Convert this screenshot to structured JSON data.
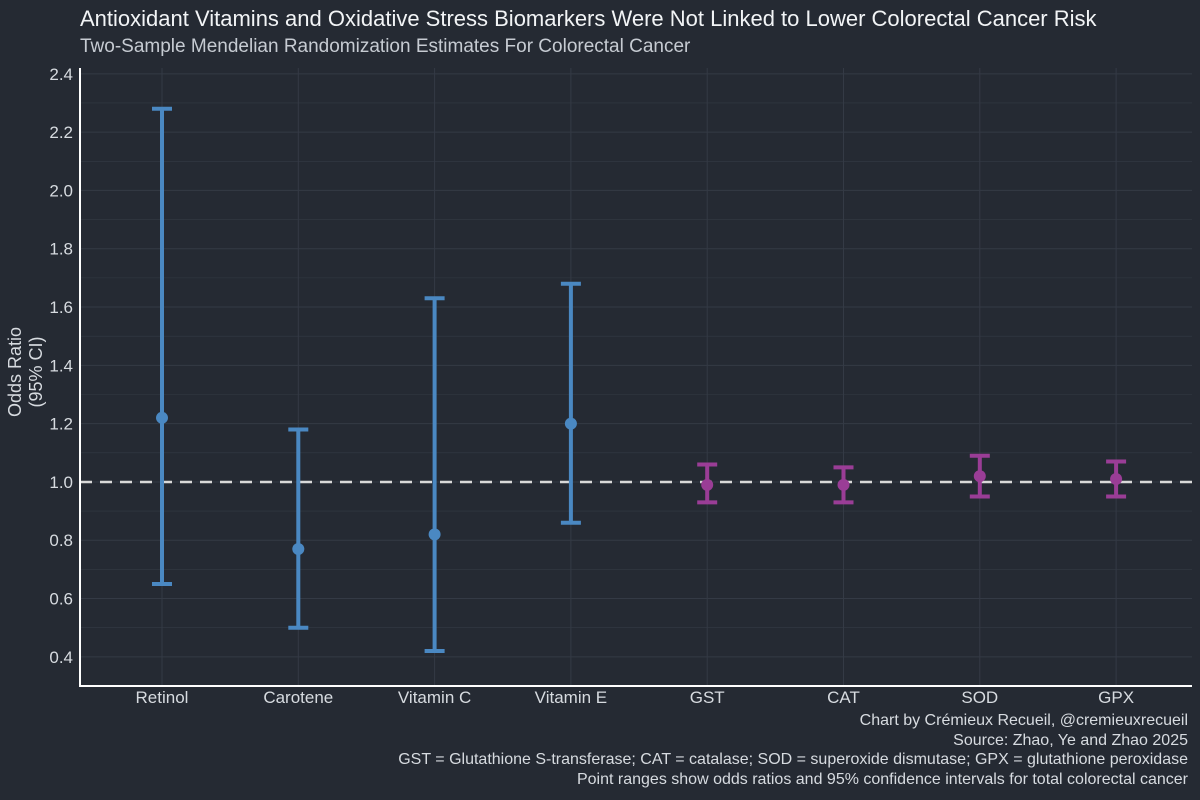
{
  "title": "Antioxidant Vitamins and Oxidative Stress Biomarkers Were Not Linked to Lower Colorectal Cancer Risk",
  "subtitle": "Two-Sample Mendelian Randomization Estimates For Colorectal Cancer",
  "footnotes": [
    "Chart by Crémieux Recueil, @cremieuxrecueil",
    "Source: Zhao, Ye and Zhao 2025",
    "GST = Glutathione S-transferase; CAT = catalase; SOD = superoxide dismutase; GPX = glutathione peroxidase",
    "Point ranges show odds ratios and 95% confidence intervals for total colorectal cancer"
  ],
  "colors": {
    "vitamin": "#4a88c2",
    "biomarker": "#9a3d96",
    "reference_line": "#d9d9d9",
    "grid": "#343a45",
    "axis": "#ffffff",
    "background": "#252a33"
  },
  "chart_data": {
    "type": "pointrange",
    "title": "Antioxidant Vitamins and Oxidative Stress Biomarkers Were Not Linked to Lower Colorectal Cancer Risk",
    "subtitle": "Two-Sample Mendelian Randomization Estimates For Colorectal Cancer",
    "ylabel": [
      "Odds Ratio",
      "(95% CI)"
    ],
    "xlabel": "",
    "ylim": [
      0.3,
      2.42
    ],
    "yticks": [
      0.4,
      0.6,
      0.8,
      1.0,
      1.2,
      1.4,
      1.6,
      1.8,
      2.0,
      2.2,
      2.4
    ],
    "ytick_labels": [
      "0.4",
      "0.6",
      "0.8",
      "1.0",
      "1.2",
      "1.4",
      "1.6",
      "1.8",
      "2.0",
      "2.2",
      "2.4"
    ],
    "reference_line": 1.0,
    "grid": true,
    "legend": false,
    "categories": [
      "Retinol",
      "Carotene",
      "Vitamin C",
      "Vitamin E",
      "GST",
      "CAT",
      "SOD",
      "GPX"
    ],
    "points": [
      {
        "label": "Retinol",
        "or": 1.22,
        "lower": 0.65,
        "upper": 2.28,
        "group": "vitamin"
      },
      {
        "label": "Carotene",
        "or": 0.77,
        "lower": 0.5,
        "upper": 1.18,
        "group": "vitamin"
      },
      {
        "label": "Vitamin C",
        "or": 0.82,
        "lower": 0.42,
        "upper": 1.63,
        "group": "vitamin"
      },
      {
        "label": "Vitamin E",
        "or": 1.2,
        "lower": 0.86,
        "upper": 1.68,
        "group": "vitamin"
      },
      {
        "label": "GST",
        "or": 0.99,
        "lower": 0.93,
        "upper": 1.06,
        "group": "biomarker"
      },
      {
        "label": "CAT",
        "or": 0.99,
        "lower": 0.93,
        "upper": 1.05,
        "group": "biomarker"
      },
      {
        "label": "SOD",
        "or": 1.02,
        "lower": 0.95,
        "upper": 1.09,
        "group": "biomarker"
      },
      {
        "label": "GPX",
        "or": 1.01,
        "lower": 0.95,
        "upper": 1.07,
        "group": "biomarker"
      }
    ]
  }
}
